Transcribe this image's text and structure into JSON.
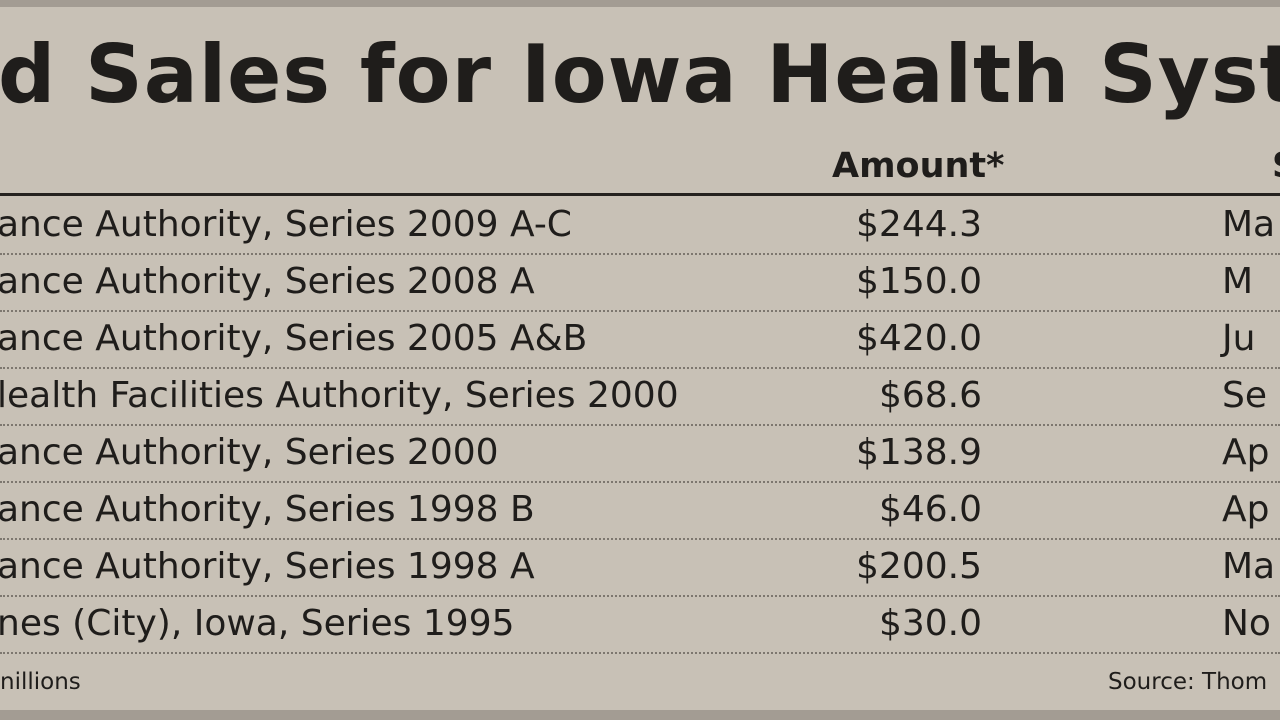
{
  "title": "d Sales for Iowa Health Syster",
  "columns": {
    "amount": "Amount*",
    "sale": "Sa"
  },
  "rows": [
    {
      "issuer": "ance Authority, Series 2009 A-C",
      "amount": "$244.3",
      "date": "Ma"
    },
    {
      "issuer": "ance Authority, Series 2008 A",
      "amount": "$150.0",
      "date": "M"
    },
    {
      "issuer": "ance Authority, Series 2005 A&B",
      "amount": "$420.0",
      "date": "Ju"
    },
    {
      "issuer": "lealth Facilities Authority, Series 2000",
      "amount": "$68.6",
      "date": "Se"
    },
    {
      "issuer": "ance Authority, Series 2000",
      "amount": "$138.9",
      "date": "Ap"
    },
    {
      "issuer": "ance Authority, Series 1998 B",
      "amount": "$46.0",
      "date": "Ap"
    },
    {
      "issuer": "ance Authority, Series 1998 A",
      "amount": "$200.5",
      "date": "Ma"
    },
    {
      "issuer": "nes (City), Iowa, Series 1995",
      "amount": "$30.0",
      "date": "No"
    }
  ],
  "footnote": "nillions",
  "source": "Source: Thom"
}
